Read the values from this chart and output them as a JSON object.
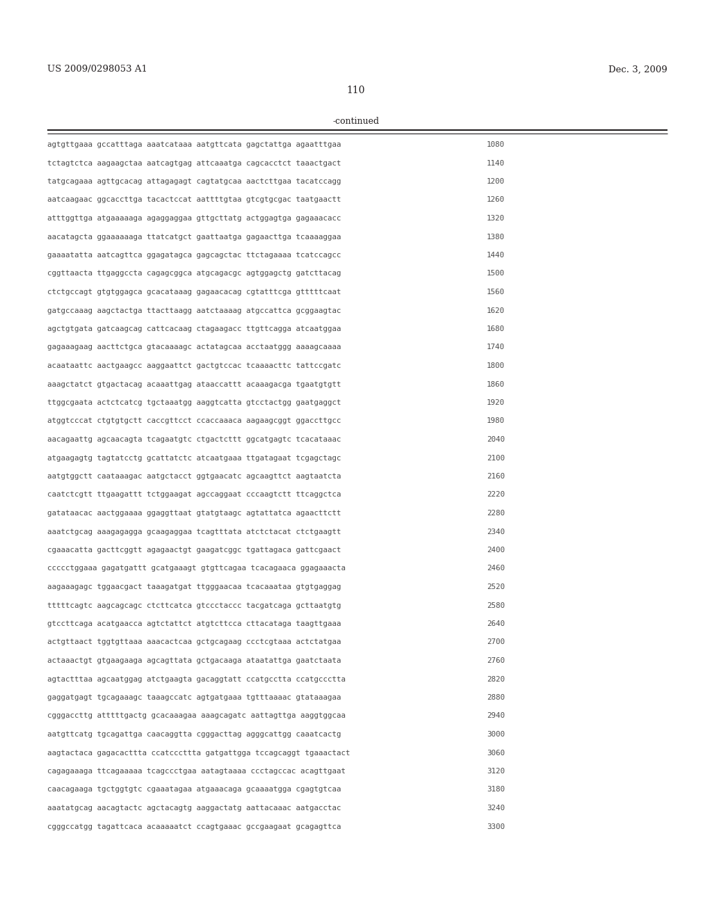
{
  "page_number": "110",
  "left_header": "US 2009/0298053 A1",
  "right_header": "Dec. 3, 2009",
  "continued_label": "-continued",
  "background_color": "#ffffff",
  "text_color": "#231f20",
  "sequence_color": "#4a4a4a",
  "sequences": [
    [
      "agtgttgaaa gccatttaga aaatcataaa aatgttcata gagctattga agaatttgaa",
      "1080"
    ],
    [
      "tctagtctca aagaagctaa aatcagtgag attcaaatga cagcacctct taaactgact",
      "1140"
    ],
    [
      "tatgcagaaa agttgcacag attagagagt cagtatgcaa aactcttgaa tacatccagg",
      "1200"
    ],
    [
      "aatcaagaac ggcaccttga tacactccat aattttgtaa gtcgtgcgac taatgaactt",
      "1260"
    ],
    [
      "atttggttga atgaaaaaga agaggaggaa gttgcttatg actggagtga gagaaacacc",
      "1320"
    ],
    [
      "aacatagcta ggaaaaaaga ttatcatgct gaattaatga gagaacttga tcaaaaggaa",
      "1380"
    ],
    [
      "gaaaatatta aatcagttca ggagatagca gagcagctac ttctagaaaa tcatccagcc",
      "1440"
    ],
    [
      "cggttaacta ttgaggccta cagagcggca atgcagacgc agtggagctg gatcttacag",
      "1500"
    ],
    [
      "ctctgccagt gtgtggagca gcacataaag gagaacacag cgtatttcga gtttttcaat",
      "1560"
    ],
    [
      "gatgccaaag aagctactga ttacttaagg aatctaaaag atgccattca gcggaagtac",
      "1620"
    ],
    [
      "agctgtgata gatcaagcag cattcacaag ctagaagacc ttgttcagga atcaatggaa",
      "1680"
    ],
    [
      "gagaaagaag aacttctgca gtacaaaagc actatagcaa acctaatggg aaaagcaaaa",
      "1740"
    ],
    [
      "acaataattc aactgaagcc aaggaattct gactgtccac tcaaaacttc tattccgatc",
      "1800"
    ],
    [
      "aaagctatct gtgactacag acaaattgag ataaccattt acaaagacga tgaatgtgtt",
      "1860"
    ],
    [
      "ttggcgaata actctcatcg tgctaaatgg aaggtcatta gtcctactgg gaatgaggct",
      "1920"
    ],
    [
      "atggtcccat ctgtgtgctt caccgttcct ccaccaaaca aagaagcggt ggaccttgcc",
      "1980"
    ],
    [
      "aacagaattg agcaacagta tcagaatgtc ctgactcttt ggcatgagtc tcacataaac",
      "2040"
    ],
    [
      "atgaagagtg tagtatcctg gcattatctc atcaatgaaa ttgatagaat tcgagctagc",
      "2100"
    ],
    [
      "aatgtggctt caataaagac aatgctacct ggtgaacatc agcaagttct aagtaatcta",
      "2160"
    ],
    [
      "caatctcgtt ttgaagattt tctggaagat agccaggaat cccaagtctt ttcaggctca",
      "2220"
    ],
    [
      "gatataacac aactggaaaa ggaggttaat gtatgtaagc agtattatca agaacttctt",
      "2280"
    ],
    [
      "aaatctgcag aaagagagga gcaagaggaa tcagtttata atctctacat ctctgaagtt",
      "2340"
    ],
    [
      "cgaaacatta gacttcggtt agagaactgt gaagatcggc tgattagaca gattcgaact",
      "2400"
    ],
    [
      "ccccctggaaa gagatgattt gcatgaaagt gtgttcagaa tcacagaaca ggagaaacta",
      "2460"
    ],
    [
      "aagaaagagc tggaacgact taaagatgat ttgggaacaa tcacaaataa gtgtgaggag",
      "2520"
    ],
    [
      "tttttcagtc aagcagcagc ctcttcatca gtccctaccc tacgatcaga gcttaatgtg",
      "2580"
    ],
    [
      "gtccttcaga acatgaacca agtctattct atgtcttcca cttacataga taagttgaaa",
      "2640"
    ],
    [
      "actgttaact tggtgttaaa aaacactcaa gctgcagaag ccctcgtaaa actctatgaa",
      "2700"
    ],
    [
      "actaaactgt gtgaagaaga agcagttata gctgacaaga ataatattga gaatctaata",
      "2760"
    ],
    [
      "agtactttaa agcaatggag atctgaagta gacaggtatt ccatgcctta ccatgccctta",
      "2820"
    ],
    [
      "gaggatgagt tgcagaaagc taaagccatc agtgatgaaa tgtttaaaac gtataaagaa",
      "2880"
    ],
    [
      "cgggaccttg atttttgactg gcacaaagaa aaagcagatc aattagttga aaggtggcaa",
      "2940"
    ],
    [
      "aatgttcatg tgcagattga caacaggtta cgggacttag agggcattgg caaatcactg",
      "3000"
    ],
    [
      "aagtactaca gagacacttta ccatcccttta gatgattgga tccagcaggt tgaaactact",
      "3060"
    ],
    [
      "cagagaaaga ttcagaaaaa tcagccctgaa aatagtaaaa ccctagccac acagttgaat",
      "3120"
    ],
    [
      "caacagaaga tgctggtgtc cgaaatagaa atgaaacaga gcaaaatgga cgagtgtcaa",
      "3180"
    ],
    [
      "aaatatgcag aacagtactc agctacagtg aaggactatg aattacaaac aatgacctac",
      "3240"
    ],
    [
      "cgggccatgg tagattcaca acaaaaatct ccagtgaaac gccgaagaat gcagagttca",
      "3300"
    ]
  ]
}
